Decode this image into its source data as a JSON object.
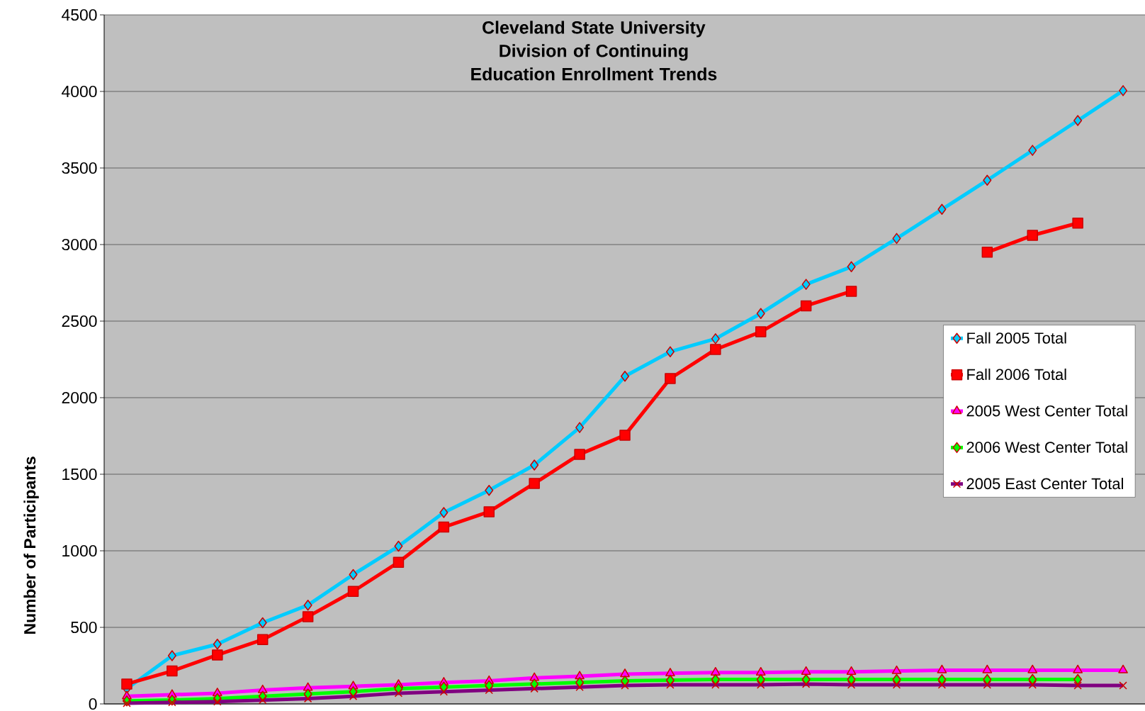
{
  "chart_data": {
    "type": "line",
    "title": "Cleveland State University",
    "subtitle": "Division of Continuing Education Enrollment Trends",
    "ylabel": "Number of Participants",
    "categories": [
      null,
      null,
      null,
      null,
      null,
      null,
      null,
      null,
      null,
      null,
      null,
      null,
      null,
      null,
      null,
      null,
      null,
      null,
      null,
      null,
      null,
      null,
      null
    ],
    "series": [
      {
        "name": "Fall 2005 Total",
        "color": "#00ccff",
        "marker": "diamond",
        "values": [
          100,
          315,
          390,
          530,
          645,
          845,
          1030,
          1250,
          1395,
          1560,
          1805,
          2140,
          2300,
          2385,
          2550,
          2740,
          2855,
          3040,
          3230,
          3420,
          3615,
          3810,
          4005
        ]
      },
      {
        "name": "Fall 2006 Total",
        "color": "#ff0000",
        "marker": "square",
        "values": [
          130,
          215,
          320,
          420,
          570,
          735,
          925,
          1155,
          1255,
          1440,
          1630,
          1755,
          2125,
          2315,
          2430,
          2600,
          2695,
          null,
          null,
          2950,
          3060,
          3140,
          null
        ]
      },
      {
        "name": "2005 West Center Total",
        "color": "#ff00ff",
        "marker": "triangle",
        "values": [
          50,
          60,
          70,
          90,
          105,
          115,
          125,
          140,
          150,
          170,
          180,
          195,
          200,
          205,
          205,
          210,
          210,
          215,
          220,
          220,
          220,
          220,
          220
        ]
      },
      {
        "name": "2006 West Center Total",
        "color": "#00ff00",
        "marker": "diamond",
        "values": [
          20,
          25,
          35,
          50,
          65,
          80,
          100,
          110,
          120,
          130,
          140,
          150,
          155,
          160,
          160,
          160,
          160,
          160,
          160,
          160,
          160,
          160,
          null
        ]
      },
      {
        "name": "2005 East Center Total",
        "color": "#800080",
        "marker": "cross",
        "values": [
          5,
          10,
          15,
          25,
          35,
          50,
          70,
          80,
          90,
          100,
          110,
          120,
          125,
          125,
          125,
          130,
          125,
          125,
          125,
          125,
          125,
          120,
          120
        ]
      }
    ],
    "ylim": [
      0,
      4500
    ],
    "yticks": [
      0,
      500,
      1000,
      1500,
      2000,
      2500,
      3000,
      3500,
      4000,
      4500
    ],
    "grid": "y",
    "legend": "right",
    "tick_labels": "y"
  }
}
